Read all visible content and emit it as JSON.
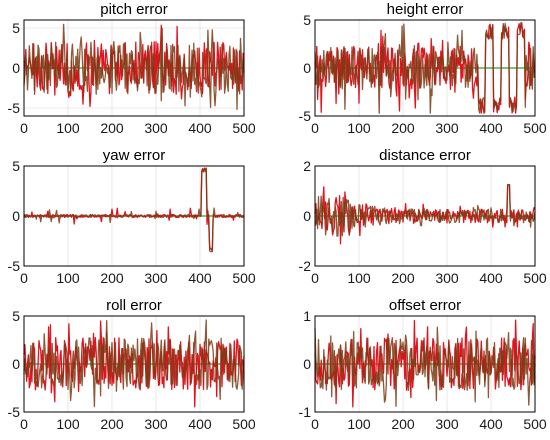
{
  "colors": {
    "red": "#e0141e",
    "dark": "#7a3b14",
    "green": "#2ca02c",
    "axis": "#000000",
    "grid": "#d8d8d8"
  },
  "chart_data": [
    {
      "type": "line",
      "title": "pitch error",
      "xlabel": "",
      "ylabel": "",
      "xlim": [
        0,
        500
      ],
      "ylim": [
        -6,
        6
      ],
      "xticks": [
        "0",
        "100",
        "200",
        "300",
        "400",
        "500"
      ],
      "yticks": [
        "5",
        "0",
        "-5"
      ],
      "ytick_values": [
        5,
        0,
        -5
      ],
      "grid": true,
      "profile": "uniform",
      "series": [
        {
          "values_summary": "dense noise around 0, amplitude up to about ±5"
        }
      ]
    },
    {
      "type": "line",
      "title": "height error",
      "xlabel": "",
      "ylabel": "",
      "xlim": [
        0,
        500
      ],
      "ylim": [
        -5,
        5
      ],
      "xticks": [
        "0",
        "100",
        "200",
        "300",
        "400",
        "500"
      ],
      "yticks": [
        "5",
        "0",
        "-5"
      ],
      "ytick_values": [
        5,
        0,
        -5
      ],
      "grid": true,
      "profile": "height",
      "series": [
        {
          "values_summary": "noise around 0 with large swings to ±5, large zig-zag oscillations between 370 and 480"
        }
      ]
    },
    {
      "type": "line",
      "title": "yaw error",
      "xlabel": "",
      "ylabel": "",
      "xlim": [
        0,
        500
      ],
      "ylim": [
        -5,
        5
      ],
      "xticks": [
        "0",
        "100",
        "200",
        "300",
        "400",
        "500"
      ],
      "yticks": [
        "5",
        "0",
        "-5"
      ],
      "ytick_values": [
        5,
        0,
        -5
      ],
      "grid": true,
      "profile": "yaw",
      "series": [
        {
          "values_summary": "near 0 with small spikes; large spike to about 5 near x=405-415; dip to about -3.5 near x=425"
        }
      ]
    },
    {
      "type": "line",
      "title": "distance error",
      "xlabel": "",
      "ylabel": "",
      "xlim": [
        0,
        500
      ],
      "ylim": [
        -2,
        2
      ],
      "xticks": [
        "0",
        "100",
        "200",
        "300",
        "400",
        "500"
      ],
      "yticks": [
        "2",
        "0",
        "-2"
      ],
      "ytick_values": [
        2,
        0,
        -2
      ],
      "grid": true,
      "profile": "distance",
      "series": [
        {
          "values_summary": "noise with amplitude about ±1.5 early (x<80), decaying to about ±0.5; spike to about 1.3 near x=440"
        }
      ]
    },
    {
      "type": "line",
      "title": "roll error",
      "xlabel": "",
      "ylabel": "",
      "xlim": [
        0,
        500
      ],
      "ylim": [
        -5,
        5
      ],
      "xticks": [
        "0",
        "100",
        "200",
        "300",
        "400",
        "500"
      ],
      "yticks": [
        "5",
        "0",
        "-5"
      ],
      "ytick_values": [
        5,
        0,
        -5
      ],
      "grid": true,
      "profile": "uniform",
      "series": [
        {
          "values_summary": "dense noise around 0, amplitude up to about ±4"
        }
      ]
    },
    {
      "type": "line",
      "title": "offset error",
      "xlabel": "",
      "ylabel": "",
      "xlim": [
        0,
        500
      ],
      "ylim": [
        -1,
        1
      ],
      "xticks": [
        "0",
        "100",
        "200",
        "300",
        "400",
        "500"
      ],
      "yticks": [
        "1",
        "0",
        "-1"
      ],
      "ytick_values": [
        1,
        0,
        -1
      ],
      "grid": true,
      "profile": "uniform",
      "series": [
        {
          "values_summary": "dense noise around 0, amplitude up to about ±1"
        }
      ]
    }
  ]
}
